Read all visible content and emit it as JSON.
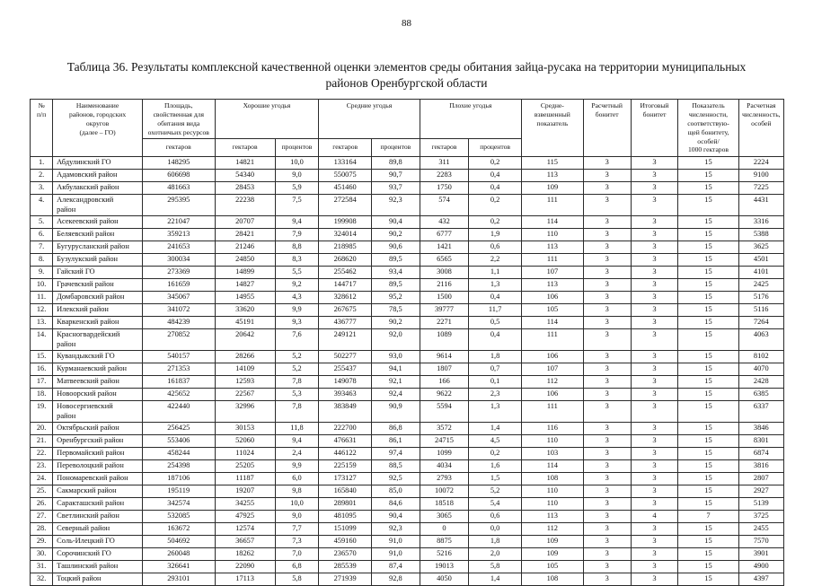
{
  "page": {
    "number": "88"
  },
  "title": "Таблица 36. Результаты комплексной качественной оценки элементов среды обитания зайца-русака на территории муниципальных районов Оренбургской области",
  "table": {
    "header": {
      "num": "№\nп/п",
      "name": "Наименование\nрайонов, городских\nокругов\n(далее – ГО)",
      "area": "Площадь,\nсвойственная для\nобитания вида\nохотничьих ресурсов",
      "good": "Хорошие угодья",
      "medium": "Средние угодья",
      "bad": "Плохие угодья",
      "weighted": "Средне-\nвзвешенный\nпоказатель",
      "calc_bonitet": "Расчетный\nбонитет",
      "final_bonitet": "Итоговый\nбонитет",
      "density": "Показатель\nчисленности,\nсоответствую-\nщей бонитету,\nособей/\n1000 гектаров",
      "calc_number": "Расчетная\nчисленность,\nособей",
      "hectares": "гектаров",
      "percent": "процентов"
    },
    "rows": [
      [
        "1.",
        "Абдулинский ГО",
        "148295",
        "14821",
        "10,0",
        "133164",
        "89,8",
        "311",
        "0,2",
        "115",
        "3",
        "3",
        "15",
        "2224"
      ],
      [
        "2.",
        "Адамовский район",
        "606698",
        "54340",
        "9,0",
        "550075",
        "90,7",
        "2283",
        "0,4",
        "113",
        "3",
        "3",
        "15",
        "9100"
      ],
      [
        "3.",
        "Акбулакский район",
        "481663",
        "28453",
        "5,9",
        "451460",
        "93,7",
        "1750",
        "0,4",
        "109",
        "3",
        "3",
        "15",
        "7225"
      ],
      [
        "4.",
        "Александровский\nрайон",
        "295395",
        "22238",
        "7,5",
        "272584",
        "92,3",
        "574",
        "0,2",
        "111",
        "3",
        "3",
        "15",
        "4431"
      ],
      [
        "5.",
        "Асекеевский район",
        "221047",
        "20707",
        "9,4",
        "199908",
        "90,4",
        "432",
        "0,2",
        "114",
        "3",
        "3",
        "15",
        "3316"
      ],
      [
        "6.",
        "Беляевский район",
        "359213",
        "28421",
        "7,9",
        "324014",
        "90,2",
        "6777",
        "1,9",
        "110",
        "3",
        "3",
        "15",
        "5388"
      ],
      [
        "7.",
        "Бугурусланский район",
        "241653",
        "21246",
        "8,8",
        "218985",
        "90,6",
        "1421",
        "0,6",
        "113",
        "3",
        "3",
        "15",
        "3625"
      ],
      [
        "8.",
        "Бузулукский район",
        "300034",
        "24850",
        "8,3",
        "268620",
        "89,5",
        "6565",
        "2,2",
        "111",
        "3",
        "3",
        "15",
        "4501"
      ],
      [
        "9.",
        "Гайский ГО",
        "273369",
        "14899",
        "5,5",
        "255462",
        "93,4",
        "3008",
        "1,1",
        "107",
        "3",
        "3",
        "15",
        "4101"
      ],
      [
        "10.",
        "Грачевский район",
        "161659",
        "14827",
        "9,2",
        "144717",
        "89,5",
        "2116",
        "1,3",
        "113",
        "3",
        "3",
        "15",
        "2425"
      ],
      [
        "11.",
        "Домбаровский район",
        "345067",
        "14955",
        "4,3",
        "328612",
        "95,2",
        "1500",
        "0,4",
        "106",
        "3",
        "3",
        "15",
        "5176"
      ],
      [
        "12.",
        "Илекский район",
        "341072",
        "33620",
        "9,9",
        "267675",
        "78,5",
        "39777",
        "11,7",
        "105",
        "3",
        "3",
        "15",
        "5116"
      ],
      [
        "13.",
        "Кваркенский район",
        "484239",
        "45191",
        "9,3",
        "436777",
        "90,2",
        "2271",
        "0,5",
        "114",
        "3",
        "3",
        "15",
        "7264"
      ],
      [
        "14.",
        "Красногвардейский\nрайон",
        "270852",
        "20642",
        "7,6",
        "249121",
        "92,0",
        "1089",
        "0,4",
        "111",
        "3",
        "3",
        "15",
        "4063"
      ],
      [
        "15.",
        "Кувандыкский ГО",
        "540157",
        "28266",
        "5,2",
        "502277",
        "93,0",
        "9614",
        "1,8",
        "106",
        "3",
        "3",
        "15",
        "8102"
      ],
      [
        "16.",
        "Курманаевский район",
        "271353",
        "14109",
        "5,2",
        "255437",
        "94,1",
        "1807",
        "0,7",
        "107",
        "3",
        "3",
        "15",
        "4070"
      ],
      [
        "17.",
        "Матвеевский район",
        "161837",
        "12593",
        "7,8",
        "149078",
        "92,1",
        "166",
        "0,1",
        "112",
        "3",
        "3",
        "15",
        "2428"
      ],
      [
        "18.",
        "Новоорский район",
        "425652",
        "22567",
        "5,3",
        "393463",
        "92,4",
        "9622",
        "2,3",
        "106",
        "3",
        "3",
        "15",
        "6385"
      ],
      [
        "19.",
        "Новосергиевский\nрайон",
        "422440",
        "32996",
        "7,8",
        "383849",
        "90,9",
        "5594",
        "1,3",
        "111",
        "3",
        "3",
        "15",
        "6337"
      ],
      [
        "20.",
        "Октябрьский район",
        "256425",
        "30153",
        "11,8",
        "222700",
        "86,8",
        "3572",
        "1,4",
        "116",
        "3",
        "3",
        "15",
        "3846"
      ],
      [
        "21.",
        "Оренбургский район",
        "553406",
        "52060",
        "9,4",
        "476631",
        "86,1",
        "24715",
        "4,5",
        "110",
        "3",
        "3",
        "15",
        "8301"
      ],
      [
        "22.",
        "Первомайский район",
        "458244",
        "11024",
        "2,4",
        "446122",
        "97,4",
        "1099",
        "0,2",
        "103",
        "3",
        "3",
        "15",
        "6874"
      ],
      [
        "23.",
        "Переволоцкий район",
        "254398",
        "25205",
        "9,9",
        "225159",
        "88,5",
        "4034",
        "1,6",
        "114",
        "3",
        "3",
        "15",
        "3816"
      ],
      [
        "24.",
        "Пономаревский район",
        "187106",
        "11187",
        "6,0",
        "173127",
        "92,5",
        "2793",
        "1,5",
        "108",
        "3",
        "3",
        "15",
        "2807"
      ],
      [
        "25.",
        "Сакмарский район",
        "195119",
        "19207",
        "9,8",
        "165840",
        "85,0",
        "10072",
        "5,2",
        "110",
        "3",
        "3",
        "15",
        "2927"
      ],
      [
        "26.",
        "Саракташский район",
        "342574",
        "34255",
        "10,0",
        "289801",
        "84,6",
        "18518",
        "5,4",
        "110",
        "3",
        "3",
        "15",
        "5139"
      ],
      [
        "27.",
        "Светлинский район",
        "532085",
        "47925",
        "9,0",
        "481095",
        "90,4",
        "3065",
        "0,6",
        "113",
        "3",
        "4",
        "7",
        "3725"
      ],
      [
        "28.",
        "Северный район",
        "163672",
        "12574",
        "7,7",
        "151099",
        "92,3",
        "0",
        "0,0",
        "112",
        "3",
        "3",
        "15",
        "2455"
      ],
      [
        "29.",
        "Соль-Илецкий ГО",
        "504692",
        "36657",
        "7,3",
        "459160",
        "91,0",
        "8875",
        "1,8",
        "109",
        "3",
        "3",
        "15",
        "7570"
      ],
      [
        "30.",
        "Сорочинский ГО",
        "260048",
        "18262",
        "7,0",
        "236570",
        "91,0",
        "5216",
        "2,0",
        "109",
        "3",
        "3",
        "15",
        "3901"
      ],
      [
        "31.",
        "Ташлинский район",
        "326641",
        "22090",
        "6,8",
        "285539",
        "87,4",
        "19013",
        "5,8",
        "105",
        "3",
        "3",
        "15",
        "4900"
      ],
      [
        "32.",
        "Тоцкий район",
        "293101",
        "17113",
        "5,8",
        "271939",
        "92,8",
        "4050",
        "1,4",
        "108",
        "3",
        "3",
        "15",
        "4397"
      ]
    ]
  }
}
